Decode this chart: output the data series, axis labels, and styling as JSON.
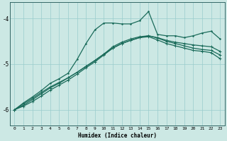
{
  "xlabel": "Humidex (Indice chaleur)",
  "ylabel": "",
  "background_color": "#cce8e4",
  "grid_color": "#99cccc",
  "line_color": "#1a6b5a",
  "xlim": [
    -0.5,
    23.5
  ],
  "ylim": [
    -6.35,
    -3.65
  ],
  "yticks": [
    -6,
    -5,
    -4
  ],
  "xticks": [
    0,
    1,
    2,
    3,
    4,
    5,
    6,
    7,
    8,
    9,
    10,
    11,
    12,
    13,
    14,
    15,
    16,
    17,
    18,
    19,
    20,
    21,
    22,
    23
  ],
  "series1_x": [
    0,
    1,
    2,
    3,
    4,
    5,
    6,
    7,
    8,
    9,
    10,
    11,
    12,
    13,
    14,
    15,
    16,
    17,
    18,
    19,
    20,
    21,
    22,
    23
  ],
  "series1_y": [
    -6.0,
    -5.85,
    -5.72,
    -5.58,
    -5.42,
    -5.32,
    -5.2,
    -4.9,
    -4.55,
    -4.25,
    -4.1,
    -4.1,
    -4.12,
    -4.12,
    -4.05,
    -3.85,
    -4.35,
    -4.38,
    -4.38,
    -4.42,
    -4.38,
    -4.32,
    -4.28,
    -4.45
  ],
  "series2_x": [
    0,
    1,
    2,
    3,
    4,
    5,
    6,
    7,
    8,
    9,
    10,
    11,
    12,
    13,
    14,
    15,
    16,
    17,
    18,
    19,
    20,
    21,
    22,
    23
  ],
  "series2_y": [
    -6.0,
    -5.87,
    -5.75,
    -5.62,
    -5.5,
    -5.4,
    -5.3,
    -5.18,
    -5.05,
    -4.92,
    -4.78,
    -4.65,
    -4.55,
    -4.48,
    -4.42,
    -4.38,
    -4.42,
    -4.48,
    -4.52,
    -4.55,
    -4.58,
    -4.6,
    -4.62,
    -4.72
  ],
  "series3_x": [
    0,
    1,
    2,
    3,
    4,
    5,
    6,
    7,
    8,
    9,
    10,
    11,
    12,
    13,
    14,
    15,
    16,
    17,
    18,
    19,
    20,
    21,
    22,
    23
  ],
  "series3_y": [
    -6.0,
    -5.9,
    -5.78,
    -5.65,
    -5.52,
    -5.42,
    -5.3,
    -5.18,
    -5.05,
    -4.92,
    -4.78,
    -4.62,
    -4.52,
    -4.45,
    -4.4,
    -4.38,
    -4.43,
    -4.5,
    -4.55,
    -4.6,
    -4.65,
    -4.68,
    -4.7,
    -4.8
  ],
  "series4_x": [
    0,
    1,
    2,
    3,
    4,
    5,
    6,
    7,
    8,
    9,
    10,
    11,
    12,
    13,
    14,
    15,
    16,
    17,
    18,
    19,
    20,
    21,
    22,
    23
  ],
  "series4_y": [
    -6.0,
    -5.92,
    -5.82,
    -5.7,
    -5.57,
    -5.46,
    -5.35,
    -5.22,
    -5.08,
    -4.95,
    -4.8,
    -4.65,
    -4.55,
    -4.48,
    -4.42,
    -4.4,
    -4.47,
    -4.55,
    -4.6,
    -4.65,
    -4.7,
    -4.72,
    -4.75,
    -4.88
  ]
}
